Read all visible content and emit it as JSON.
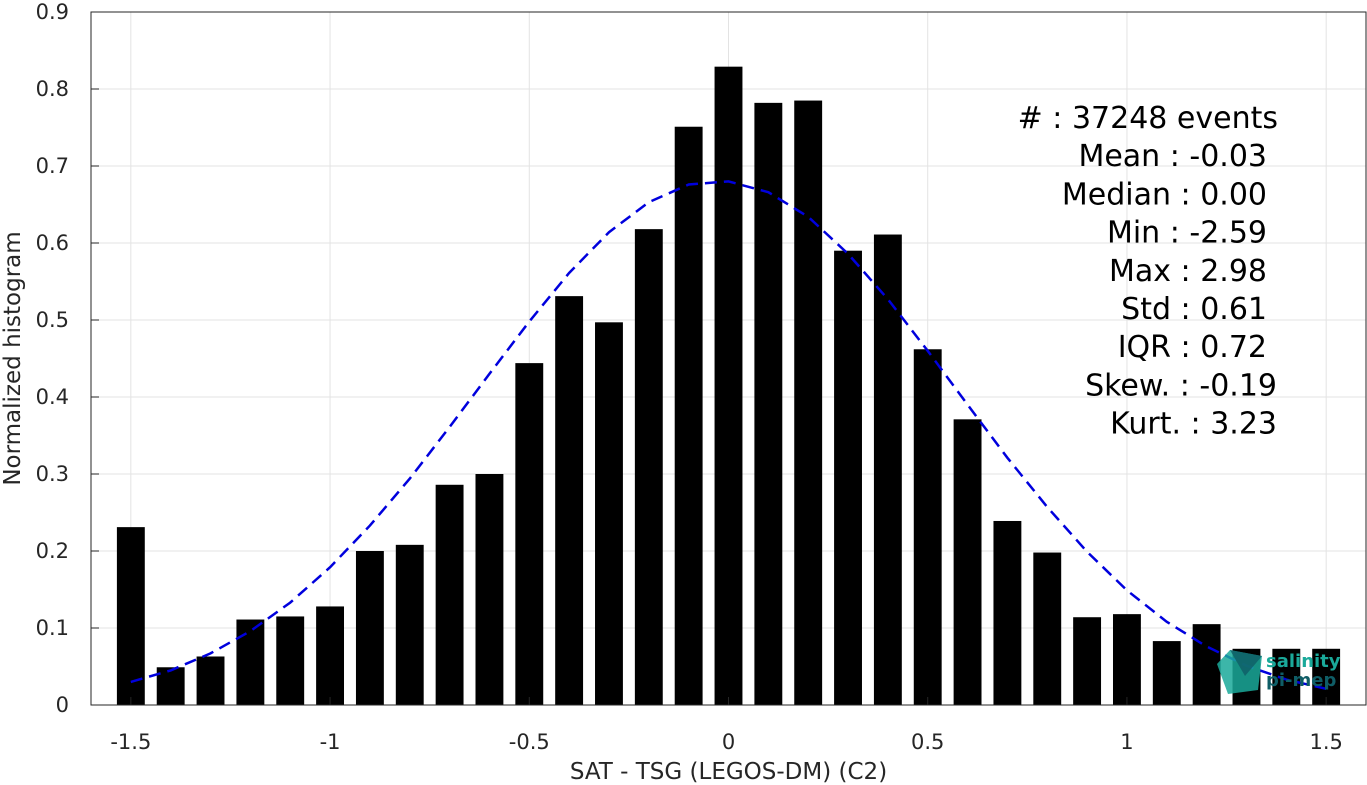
{
  "chart_data": {
    "type": "bar",
    "xlabel": "SAT - TSG (LEGOS-DM) (C2)",
    "ylabel": "Normalized histogram",
    "xlim": [
      -1.6,
      1.6
    ],
    "ylim": [
      0,
      0.9
    ],
    "grid": true,
    "x_ticks": [
      "-1.5",
      "-1",
      "-0.5",
      "0",
      "0.5",
      "1",
      "1.5"
    ],
    "y_ticks": [
      "0",
      "0.1",
      "0.2",
      "0.3",
      "0.4",
      "0.5",
      "0.6",
      "0.7",
      "0.8",
      "0.9"
    ],
    "x": [
      -1.5,
      -1.4,
      -1.3,
      -1.2,
      -1.1,
      -1.0,
      -0.9,
      -0.8,
      -0.7,
      -0.6,
      -0.5,
      -0.4,
      -0.3,
      -0.2,
      -0.1,
      0.0,
      0.1,
      0.2,
      0.3,
      0.4,
      0.5,
      0.6,
      0.7,
      0.8,
      0.9,
      1.0,
      1.1,
      1.2,
      1.3,
      1.4,
      1.5
    ],
    "values": [
      0.231,
      0.049,
      0.063,
      0.111,
      0.115,
      0.128,
      0.2,
      0.208,
      0.286,
      0.3,
      0.444,
      0.531,
      0.497,
      0.618,
      0.751,
      0.829,
      0.782,
      0.785,
      0.59,
      0.611,
      0.462,
      0.371,
      0.239,
      0.198,
      0.114,
      0.118,
      0.083,
      0.105,
      0.073,
      0.073,
      0.073
    ],
    "bar_color": "#000000",
    "fit_curve": {
      "style": "dashed",
      "color": "#0000dd",
      "x": [
        -1.5,
        -1.4,
        -1.3,
        -1.2,
        -1.1,
        -1.0,
        -0.9,
        -0.8,
        -0.7,
        -0.6,
        -0.5,
        -0.4,
        -0.3,
        -0.2,
        -0.1,
        0.0,
        0.1,
        0.2,
        0.3,
        0.4,
        0.5,
        0.6,
        0.7,
        0.8,
        0.9,
        1.0,
        1.1,
        1.2,
        1.3,
        1.4,
        1.5
      ],
      "y": [
        0.03,
        0.045,
        0.067,
        0.096,
        0.133,
        0.179,
        0.233,
        0.294,
        0.361,
        0.43,
        0.498,
        0.561,
        0.614,
        0.653,
        0.676,
        0.68,
        0.666,
        0.634,
        0.586,
        0.527,
        0.46,
        0.39,
        0.321,
        0.257,
        0.199,
        0.149,
        0.108,
        0.076,
        0.051,
        0.033,
        0.021
      ]
    },
    "stats": [
      {
        "label": "#  ",
        "value": ": 37248 events"
      },
      {
        "label": "Mean",
        "value": ": -0.03"
      },
      {
        "label": "Median",
        "value": ": 0.00"
      },
      {
        "label": "Min",
        "value": ": -2.59"
      },
      {
        "label": "Max",
        "value": ": 2.98"
      },
      {
        "label": "Std",
        "value": ": 0.61"
      },
      {
        "label": "IQR",
        "value": ": 0.72"
      },
      {
        "label": "Skew.",
        "value": ": -0.19"
      },
      {
        "label": "Kurt.",
        "value": ": 3.23"
      }
    ]
  },
  "logo": {
    "line1": "salinity",
    "line2": "pi-mep",
    "color_primary": "#1aa99a",
    "color_secondary": "#0f5d66"
  }
}
